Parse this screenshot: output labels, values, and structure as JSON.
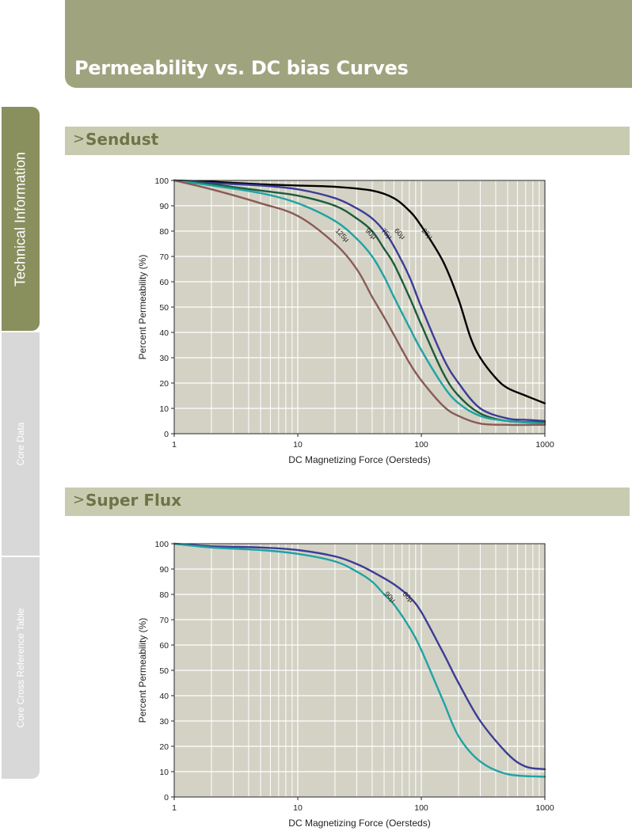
{
  "header": {
    "title": "Permeability vs. DC bias Curves"
  },
  "sidebar": {
    "tabs": [
      {
        "label": "Technical Information"
      },
      {
        "label": "Core Data"
      },
      {
        "label": "Core Cross Reference Table"
      }
    ]
  },
  "sections": [
    {
      "chevron": ">",
      "title": "Sendust"
    },
    {
      "chevron": ">",
      "title": "Super Flux"
    }
  ],
  "colors": {
    "header_bg": "#a0a47e",
    "section_bg": "#c9cbb1",
    "plot_bg": "#d3d2c5",
    "active_tab": "#8a8f5e"
  },
  "chart_data": [
    {
      "type": "line",
      "title": "",
      "xlabel": "DC Magnetizing Force (Oersteds)",
      "ylabel": "Percent Permeability (%)",
      "xscale": "log",
      "xlim": [
        1,
        1000
      ],
      "ylim": [
        0,
        100
      ],
      "xticks": [
        1,
        10,
        100,
        1000
      ],
      "xtick_labels": [
        "1",
        "10",
        "100",
        "1000"
      ],
      "yticks": [
        0,
        10,
        20,
        30,
        40,
        50,
        60,
        70,
        80,
        90,
        100
      ],
      "grid": true,
      "series": [
        {
          "name": "26μ",
          "color": "#000000",
          "label_at": [
            100,
            80
          ],
          "x": [
            1,
            2,
            5,
            10,
            20,
            40,
            60,
            80,
            100,
            150,
            200,
            250,
            300,
            400,
            500,
            700,
            1000
          ],
          "y": [
            100,
            99.5,
            98.5,
            98,
            97.5,
            96,
            93,
            88,
            82,
            68,
            53,
            38,
            30,
            22,
            18,
            15,
            12
          ]
        },
        {
          "name": "60μ",
          "color": "#3c3c96",
          "label_at": [
            60,
            80
          ],
          "x": [
            1,
            2,
            5,
            10,
            20,
            30,
            40,
            50,
            60,
            80,
            100,
            150,
            200,
            300,
            500,
            700,
            1000
          ],
          "y": [
            100,
            99,
            98,
            96.5,
            93,
            89,
            85,
            80,
            74,
            62,
            50,
            30,
            20,
            10,
            6,
            5.5,
            5
          ]
        },
        {
          "name": "75μ",
          "color": "#1c5c3a",
          "label_at": [
            47,
            80
          ],
          "x": [
            1,
            2,
            5,
            10,
            20,
            30,
            40,
            50,
            60,
            80,
            100,
            150,
            200,
            300,
            500,
            1000
          ],
          "y": [
            100,
            98.5,
            96,
            94,
            90,
            85,
            80,
            73,
            67,
            54,
            43,
            24,
            15,
            8,
            5,
            4.5
          ]
        },
        {
          "name": "90μ",
          "color": "#1fa3a3",
          "label_at": [
            35,
            80
          ],
          "x": [
            1,
            2,
            5,
            10,
            20,
            30,
            40,
            50,
            60,
            80,
            100,
            150,
            200,
            300,
            500,
            1000
          ],
          "y": [
            100,
            98,
            95,
            91,
            84,
            77,
            70,
            62,
            54,
            42,
            33,
            19,
            12,
            7,
            5,
            4
          ]
        },
        {
          "name": "125μ",
          "color": "#8a5a55",
          "label_at": [
            20,
            80
          ],
          "x": [
            1,
            2,
            5,
            10,
            20,
            30,
            40,
            50,
            60,
            80,
            100,
            150,
            200,
            300,
            500,
            1000
          ],
          "y": [
            100,
            96.5,
            91,
            86,
            75,
            65,
            54,
            46,
            39,
            28,
            21,
            11,
            7,
            4,
            3.5,
            3.5
          ]
        }
      ]
    },
    {
      "type": "line",
      "title": "",
      "xlabel": "DC Magnetizing Force (Oersteds)",
      "ylabel": "Percent Permeability (%)",
      "xscale": "log",
      "xlim": [
        1,
        1000
      ],
      "ylim": [
        0,
        100
      ],
      "xticks": [
        1,
        10,
        100,
        1000
      ],
      "xtick_labels": [
        "1",
        "10",
        "100",
        "1000"
      ],
      "yticks": [
        0,
        10,
        20,
        30,
        40,
        50,
        60,
        70,
        80,
        90,
        100
      ],
      "grid": true,
      "series": [
        {
          "name": "60μ",
          "color": "#3c3c96",
          "label_at": [
            70,
            80
          ],
          "x": [
            1,
            2,
            5,
            10,
            20,
            30,
            40,
            60,
            80,
            100,
            150,
            200,
            300,
            500,
            700,
            1000
          ],
          "y": [
            100,
            99,
            98.5,
            97.5,
            95,
            92,
            89,
            84,
            79,
            73,
            57,
            45,
            30,
            17,
            12,
            11
          ]
        },
        {
          "name": "90μ",
          "color": "#1fa3a3",
          "label_at": [
            50,
            80
          ],
          "x": [
            1,
            2,
            5,
            10,
            20,
            30,
            40,
            50,
            60,
            80,
            100,
            150,
            200,
            300,
            500,
            1000
          ],
          "y": [
            100,
            98.5,
            97.5,
            96,
            93,
            89,
            85,
            80,
            76,
            67,
            58,
            38,
            24,
            14,
            9,
            8
          ]
        }
      ]
    }
  ]
}
